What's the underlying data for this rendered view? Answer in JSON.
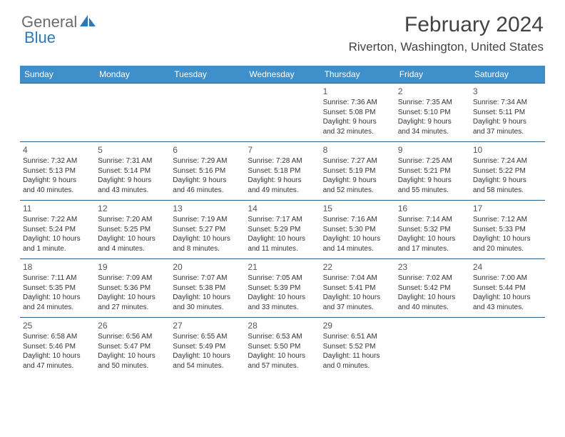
{
  "logo": {
    "textGeneral": "General",
    "textBlue": "Blue"
  },
  "title": "February 2024",
  "location": "Riverton, Washington, United States",
  "colors": {
    "headerBg": "#3f8fca",
    "headerText": "#ffffff",
    "rowBorder": "#2c5e88",
    "titleColor": "#434343",
    "bodyText": "#333333",
    "logoGray": "#6b6b6b",
    "logoBlue": "#2f78b8"
  },
  "dayHeaders": [
    "Sunday",
    "Monday",
    "Tuesday",
    "Wednesday",
    "Thursday",
    "Friday",
    "Saturday"
  ],
  "weeks": [
    [
      null,
      null,
      null,
      null,
      {
        "d": "1",
        "sr": "Sunrise: 7:36 AM",
        "ss": "Sunset: 5:08 PM",
        "dl1": "Daylight: 9 hours",
        "dl2": "and 32 minutes."
      },
      {
        "d": "2",
        "sr": "Sunrise: 7:35 AM",
        "ss": "Sunset: 5:10 PM",
        "dl1": "Daylight: 9 hours",
        "dl2": "and 34 minutes."
      },
      {
        "d": "3",
        "sr": "Sunrise: 7:34 AM",
        "ss": "Sunset: 5:11 PM",
        "dl1": "Daylight: 9 hours",
        "dl2": "and 37 minutes."
      }
    ],
    [
      {
        "d": "4",
        "sr": "Sunrise: 7:32 AM",
        "ss": "Sunset: 5:13 PM",
        "dl1": "Daylight: 9 hours",
        "dl2": "and 40 minutes."
      },
      {
        "d": "5",
        "sr": "Sunrise: 7:31 AM",
        "ss": "Sunset: 5:14 PM",
        "dl1": "Daylight: 9 hours",
        "dl2": "and 43 minutes."
      },
      {
        "d": "6",
        "sr": "Sunrise: 7:29 AM",
        "ss": "Sunset: 5:16 PM",
        "dl1": "Daylight: 9 hours",
        "dl2": "and 46 minutes."
      },
      {
        "d": "7",
        "sr": "Sunrise: 7:28 AM",
        "ss": "Sunset: 5:18 PM",
        "dl1": "Daylight: 9 hours",
        "dl2": "and 49 minutes."
      },
      {
        "d": "8",
        "sr": "Sunrise: 7:27 AM",
        "ss": "Sunset: 5:19 PM",
        "dl1": "Daylight: 9 hours",
        "dl2": "and 52 minutes."
      },
      {
        "d": "9",
        "sr": "Sunrise: 7:25 AM",
        "ss": "Sunset: 5:21 PM",
        "dl1": "Daylight: 9 hours",
        "dl2": "and 55 minutes."
      },
      {
        "d": "10",
        "sr": "Sunrise: 7:24 AM",
        "ss": "Sunset: 5:22 PM",
        "dl1": "Daylight: 9 hours",
        "dl2": "and 58 minutes."
      }
    ],
    [
      {
        "d": "11",
        "sr": "Sunrise: 7:22 AM",
        "ss": "Sunset: 5:24 PM",
        "dl1": "Daylight: 10 hours",
        "dl2": "and 1 minute."
      },
      {
        "d": "12",
        "sr": "Sunrise: 7:20 AM",
        "ss": "Sunset: 5:25 PM",
        "dl1": "Daylight: 10 hours",
        "dl2": "and 4 minutes."
      },
      {
        "d": "13",
        "sr": "Sunrise: 7:19 AM",
        "ss": "Sunset: 5:27 PM",
        "dl1": "Daylight: 10 hours",
        "dl2": "and 8 minutes."
      },
      {
        "d": "14",
        "sr": "Sunrise: 7:17 AM",
        "ss": "Sunset: 5:29 PM",
        "dl1": "Daylight: 10 hours",
        "dl2": "and 11 minutes."
      },
      {
        "d": "15",
        "sr": "Sunrise: 7:16 AM",
        "ss": "Sunset: 5:30 PM",
        "dl1": "Daylight: 10 hours",
        "dl2": "and 14 minutes."
      },
      {
        "d": "16",
        "sr": "Sunrise: 7:14 AM",
        "ss": "Sunset: 5:32 PM",
        "dl1": "Daylight: 10 hours",
        "dl2": "and 17 minutes."
      },
      {
        "d": "17",
        "sr": "Sunrise: 7:12 AM",
        "ss": "Sunset: 5:33 PM",
        "dl1": "Daylight: 10 hours",
        "dl2": "and 20 minutes."
      }
    ],
    [
      {
        "d": "18",
        "sr": "Sunrise: 7:11 AM",
        "ss": "Sunset: 5:35 PM",
        "dl1": "Daylight: 10 hours",
        "dl2": "and 24 minutes."
      },
      {
        "d": "19",
        "sr": "Sunrise: 7:09 AM",
        "ss": "Sunset: 5:36 PM",
        "dl1": "Daylight: 10 hours",
        "dl2": "and 27 minutes."
      },
      {
        "d": "20",
        "sr": "Sunrise: 7:07 AM",
        "ss": "Sunset: 5:38 PM",
        "dl1": "Daylight: 10 hours",
        "dl2": "and 30 minutes."
      },
      {
        "d": "21",
        "sr": "Sunrise: 7:05 AM",
        "ss": "Sunset: 5:39 PM",
        "dl1": "Daylight: 10 hours",
        "dl2": "and 33 minutes."
      },
      {
        "d": "22",
        "sr": "Sunrise: 7:04 AM",
        "ss": "Sunset: 5:41 PM",
        "dl1": "Daylight: 10 hours",
        "dl2": "and 37 minutes."
      },
      {
        "d": "23",
        "sr": "Sunrise: 7:02 AM",
        "ss": "Sunset: 5:42 PM",
        "dl1": "Daylight: 10 hours",
        "dl2": "and 40 minutes."
      },
      {
        "d": "24",
        "sr": "Sunrise: 7:00 AM",
        "ss": "Sunset: 5:44 PM",
        "dl1": "Daylight: 10 hours",
        "dl2": "and 43 minutes."
      }
    ],
    [
      {
        "d": "25",
        "sr": "Sunrise: 6:58 AM",
        "ss": "Sunset: 5:46 PM",
        "dl1": "Daylight: 10 hours",
        "dl2": "and 47 minutes."
      },
      {
        "d": "26",
        "sr": "Sunrise: 6:56 AM",
        "ss": "Sunset: 5:47 PM",
        "dl1": "Daylight: 10 hours",
        "dl2": "and 50 minutes."
      },
      {
        "d": "27",
        "sr": "Sunrise: 6:55 AM",
        "ss": "Sunset: 5:49 PM",
        "dl1": "Daylight: 10 hours",
        "dl2": "and 54 minutes."
      },
      {
        "d": "28",
        "sr": "Sunrise: 6:53 AM",
        "ss": "Sunset: 5:50 PM",
        "dl1": "Daylight: 10 hours",
        "dl2": "and 57 minutes."
      },
      {
        "d": "29",
        "sr": "Sunrise: 6:51 AM",
        "ss": "Sunset: 5:52 PM",
        "dl1": "Daylight: 11 hours",
        "dl2": "and 0 minutes."
      },
      null,
      null
    ]
  ]
}
